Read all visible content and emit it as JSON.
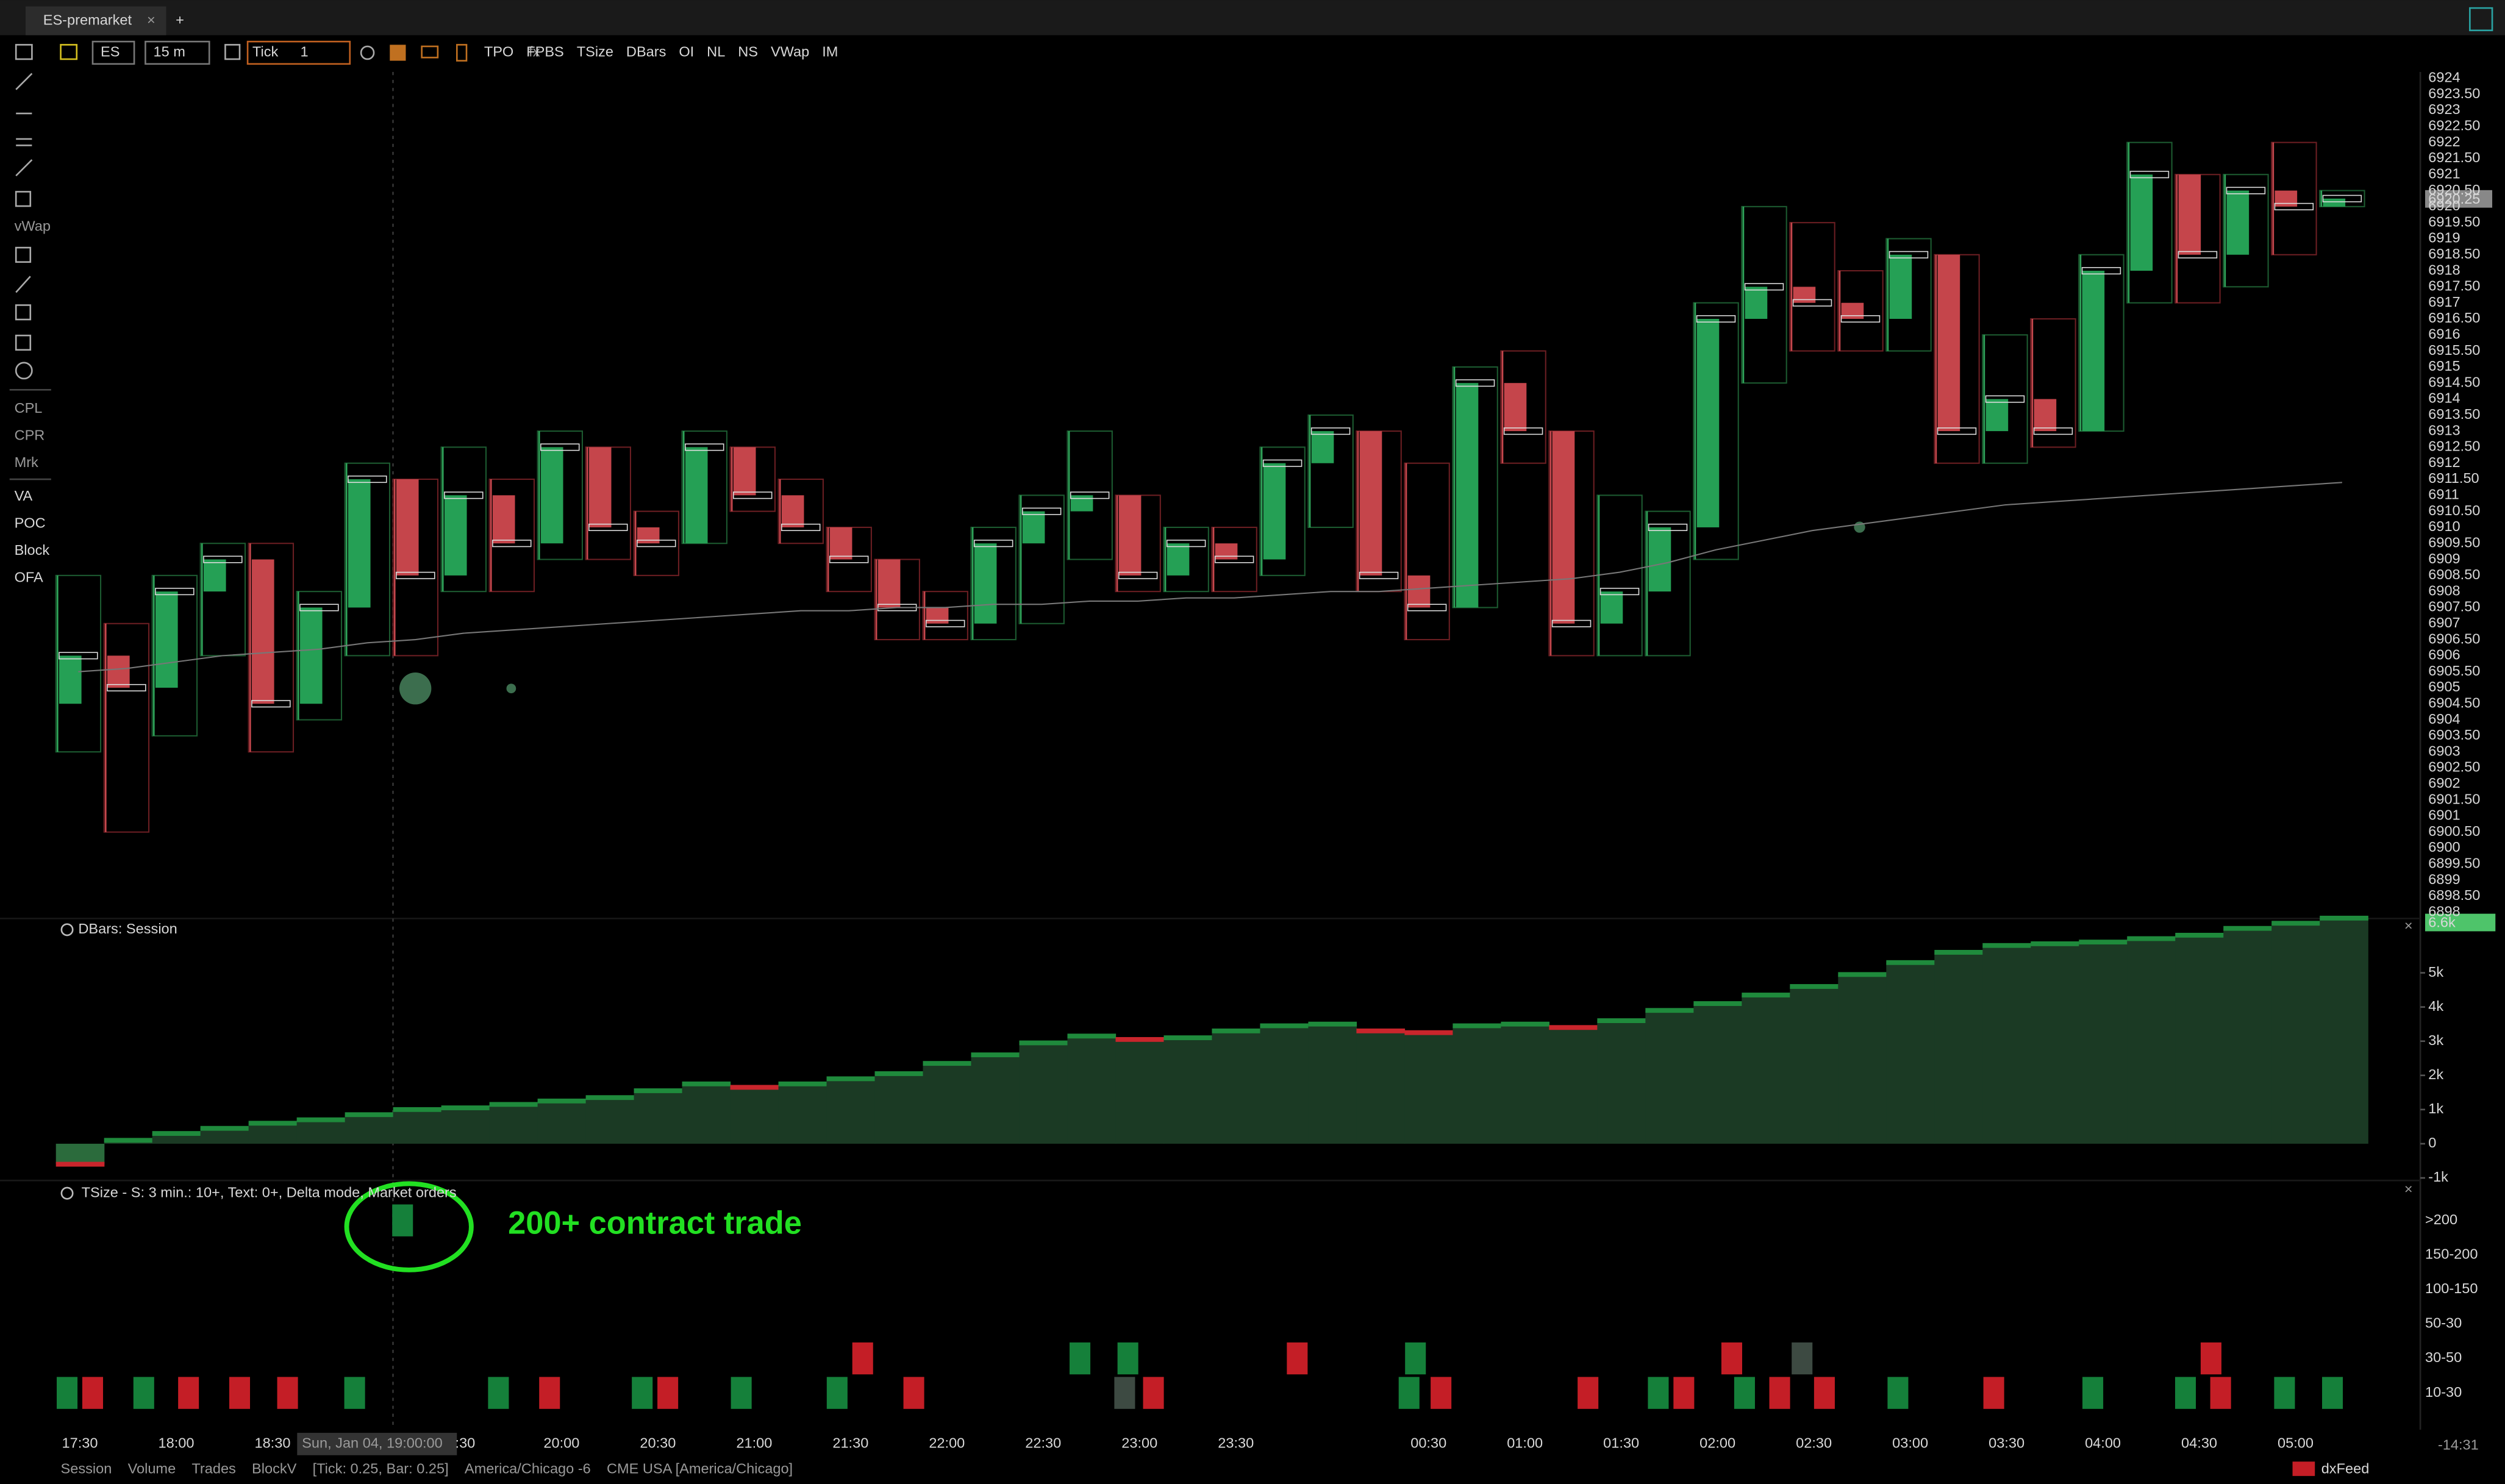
{
  "tab": {
    "title": "ES-premarket"
  },
  "toolbar": {
    "symbol": "ES",
    "interval": "15 m",
    "aggregation": "Tick",
    "aggregation_value": "1",
    "studies": [
      "TPO",
      "FPBS",
      "TSize",
      "DBars",
      "OI",
      "NL",
      "NS",
      "VWap",
      "IM"
    ]
  },
  "sidebar": {
    "top": [
      "vWap"
    ],
    "middle": [
      "CPL",
      "CPR",
      "Mrk"
    ],
    "bottom": [
      "VA",
      "POC",
      "Block",
      "OFA"
    ]
  },
  "price_axis": [
    "6924",
    "6923.50",
    "6923",
    "6922.50",
    "6922",
    "6921.50",
    "6921",
    "6920.50",
    "6920",
    "6919.50",
    "6919",
    "6918.50",
    "6918",
    "6917.50",
    "6917",
    "6916.50",
    "6916",
    "6915.50",
    "6915",
    "6914.50",
    "6914",
    "6913.50",
    "6913",
    "6912.50",
    "6912",
    "6911.50",
    "6911",
    "6910.50",
    "6910",
    "6909.50",
    "6909",
    "6908.50",
    "6908",
    "6907.50",
    "6907",
    "6906.50",
    "6906",
    "6905.50",
    "6905",
    "6904.50",
    "6904",
    "6903.50",
    "6903",
    "6902.50",
    "6902",
    "6901.50",
    "6901",
    "6900.50",
    "6900",
    "6899.50",
    "6899",
    "6898.50",
    "6898"
  ],
  "current_price": "6920.25",
  "candles": [
    {
      "open": 6904.5,
      "high": 6908.5,
      "low": 6903,
      "close": 6906
    },
    {
      "open": 6906,
      "high": 6907,
      "low": 6900.5,
      "close": 6905
    },
    {
      "open": 6905,
      "high": 6908.5,
      "low": 6903.5,
      "close": 6908
    },
    {
      "open": 6908,
      "high": 6909.5,
      "low": 6906,
      "close": 6909
    },
    {
      "open": 6909,
      "high": 6909.5,
      "low": 6903,
      "close": 6904.5
    },
    {
      "open": 6904.5,
      "high": 6908,
      "low": 6904,
      "close": 6907.5
    },
    {
      "open": 6907.5,
      "high": 6912,
      "low": 6906,
      "close": 6911.5
    },
    {
      "open": 6911.5,
      "high": 6911.5,
      "low": 6906,
      "close": 6908.5
    },
    {
      "open": 6908.5,
      "high": 6912.5,
      "low": 6908,
      "close": 6911
    },
    {
      "open": 6911,
      "high": 6911.5,
      "low": 6908,
      "close": 6909.5
    },
    {
      "open": 6909.5,
      "high": 6913,
      "low": 6909,
      "close": 6912.5
    },
    {
      "open": 6912.5,
      "high": 6912.5,
      "low": 6909,
      "close": 6910
    },
    {
      "open": 6910,
      "high": 6910.5,
      "low": 6908.5,
      "close": 6909.5
    },
    {
      "open": 6909.5,
      "high": 6913,
      "low": 6909.5,
      "close": 6912.5
    },
    {
      "open": 6912.5,
      "high": 6912.5,
      "low": 6910.5,
      "close": 6911
    },
    {
      "open": 6911,
      "high": 6911.5,
      "low": 6909.5,
      "close": 6910
    },
    {
      "open": 6910,
      "high": 6910,
      "low": 6908,
      "close": 6909
    },
    {
      "open": 6909,
      "high": 6909,
      "low": 6906.5,
      "close": 6907.5
    },
    {
      "open": 6907.5,
      "high": 6908,
      "low": 6906.5,
      "close": 6907
    },
    {
      "open": 6907,
      "high": 6910,
      "low": 6906.5,
      "close": 6909.5
    },
    {
      "open": 6909.5,
      "high": 6911,
      "low": 6907,
      "close": 6910.5
    },
    {
      "open": 6910.5,
      "high": 6913,
      "low": 6909,
      "close": 6911
    },
    {
      "open": 6911,
      "high": 6911,
      "low": 6908,
      "close": 6908.5
    },
    {
      "open": 6908.5,
      "high": 6910,
      "low": 6908,
      "close": 6909.5
    },
    {
      "open": 6909.5,
      "high": 6910,
      "low": 6908,
      "close": 6909
    },
    {
      "open": 6909,
      "high": 6912.5,
      "low": 6908.5,
      "close": 6912
    },
    {
      "open": 6912,
      "high": 6913.5,
      "low": 6910,
      "close": 6913
    },
    {
      "open": 6913,
      "high": 6913,
      "low": 6908,
      "close": 6908.5
    },
    {
      "open": 6908.5,
      "high": 6912,
      "low": 6906.5,
      "close": 6907.5
    },
    {
      "open": 6907.5,
      "high": 6915,
      "low": 6907.5,
      "close": 6914.5
    },
    {
      "open": 6914.5,
      "high": 6915.5,
      "low": 6912,
      "close": 6913
    },
    {
      "open": 6913,
      "high": 6913,
      "low": 6906,
      "close": 6907
    },
    {
      "open": 6907,
      "high": 6911,
      "low": 6906,
      "close": 6908
    },
    {
      "open": 6908,
      "high": 6910.5,
      "low": 6906,
      "close": 6910
    },
    {
      "open": 6910,
      "high": 6917,
      "low": 6909,
      "close": 6916.5
    },
    {
      "open": 6916.5,
      "high": 6920,
      "low": 6914.5,
      "close": 6917.5
    },
    {
      "open": 6917.5,
      "high": 6919.5,
      "low": 6915.5,
      "close": 6917
    },
    {
      "open": 6917,
      "high": 6918,
      "low": 6915.5,
      "close": 6916.5
    },
    {
      "open": 6916.5,
      "high": 6919,
      "low": 6915.5,
      "close": 6918.5
    },
    {
      "open": 6918.5,
      "high": 6918.5,
      "low": 6912,
      "close": 6913
    },
    {
      "open": 6913,
      "high": 6916,
      "low": 6912,
      "close": 6914
    },
    {
      "open": 6914,
      "high": 6916.5,
      "low": 6912.5,
      "close": 6913
    },
    {
      "open": 6913,
      "high": 6918.5,
      "low": 6913,
      "close": 6918
    },
    {
      "open": 6918,
      "high": 6922,
      "low": 6917,
      "close": 6921
    },
    {
      "open": 6921,
      "high": 6921,
      "low": 6917,
      "close": 6918.5
    },
    {
      "open": 6918.5,
      "high": 6921,
      "low": 6917.5,
      "close": 6920.5
    },
    {
      "open": 6920.5,
      "high": 6922,
      "low": 6918.5,
      "close": 6920
    },
    {
      "open": 6920,
      "high": 6920.5,
      "low": 6920,
      "close": 6920.25
    }
  ],
  "vwap": [
    6905.5,
    6905.6,
    6905.8,
    6906,
    6906.1,
    6906.2,
    6906.4,
    6906.5,
    6906.7,
    6906.8,
    6906.9,
    6907,
    6907.1,
    6907.2,
    6907.3,
    6907.4,
    6907.4,
    6907.5,
    6907.5,
    6907.6,
    6907.6,
    6907.7,
    6907.7,
    6907.8,
    6907.8,
    6907.9,
    6908,
    6908,
    6908.1,
    6908.2,
    6908.3,
    6908.4,
    6908.6,
    6908.9,
    6909.3,
    6909.6,
    6909.9,
    6910.1,
    6910.3,
    6910.5,
    6910.7,
    6910.8,
    6910.9,
    6911,
    6911.1,
    6911.2,
    6911.3,
    6911.4
  ],
  "dbars": {
    "title": "DBars: Session",
    "current": "6.6k",
    "ticks": [
      {
        "value": 5000,
        "label": "5k"
      },
      {
        "value": 4000,
        "label": "4k"
      },
      {
        "value": 3000,
        "label": "3k"
      },
      {
        "value": 2000,
        "label": "2k"
      },
      {
        "value": 1000,
        "label": "1k"
      },
      0,
      {
        "value": -1000,
        "label": "-1k"
      }
    ],
    "values": [
      -600,
      100,
      300,
      450,
      600,
      700,
      850,
      1000,
      1050,
      1150,
      1250,
      1350,
      1550,
      1750,
      1650,
      1750,
      1900,
      2050,
      2350,
      2600,
      2950,
      3150,
      3050,
      3100,
      3300,
      3450,
      3500,
      3300,
      3250,
      3450,
      3500,
      3400,
      3600,
      3900,
      4100,
      4350,
      4600,
      4950,
      5300,
      5600,
      5800,
      5850,
      5900,
      6000,
      6100,
      6300,
      6450,
      6600
    ],
    "up_color": "#1f8a3c",
    "down_color": "#c9252c",
    "area_color": "#1b3a24"
  },
  "tsize": {
    "title": "TSize - S: 3 min.: 10+, Text: 0+, Delta mode,  Market orders",
    "buckets": [
      ">200",
      "150-200",
      "100-150",
      "50-30",
      "30-50",
      "10-30"
    ],
    "colors": {
      "buy": "#15803a",
      "sell": "#c41e26",
      "neutral": "#3d4a42"
    },
    "trades": [
      {
        "time": "17:26",
        "bucket": 5,
        "side": "buy"
      },
      {
        "time": "17:34",
        "bucket": 5,
        "side": "sell"
      },
      {
        "time": "17:50",
        "bucket": 5,
        "side": "buy"
      },
      {
        "time": "18:04",
        "bucket": 5,
        "side": "sell"
      },
      {
        "time": "18:20",
        "bucket": 5,
        "side": "sell"
      },
      {
        "time": "18:35",
        "bucket": 5,
        "side": "sell"
      },
      {
        "time": "18:56",
        "bucket": 5,
        "side": "buy"
      },
      {
        "time": "19:11",
        "bucket": 0,
        "side": "buy"
      },
      {
        "time": "19:41",
        "bucket": 5,
        "side": "buy"
      },
      {
        "time": "19:57",
        "bucket": 5,
        "side": "sell"
      },
      {
        "time": "20:26",
        "bucket": 5,
        "side": "buy"
      },
      {
        "time": "20:34",
        "bucket": 5,
        "side": "sell"
      },
      {
        "time": "20:57",
        "bucket": 5,
        "side": "buy"
      },
      {
        "time": "21:27",
        "bucket": 5,
        "side": "buy"
      },
      {
        "time": "21:35",
        "bucket": 4,
        "side": "sell"
      },
      {
        "time": "21:51",
        "bucket": 5,
        "side": "sell"
      },
      {
        "time": "22:43",
        "bucket": 4,
        "side": "buy"
      },
      {
        "time": "22:57",
        "bucket": 5,
        "side": "neutral"
      },
      {
        "time": "22:58",
        "bucket": 4,
        "side": "buy"
      },
      {
        "time": "23:06",
        "bucket": 5,
        "side": "sell"
      },
      {
        "time": "23:51",
        "bucket": 4,
        "side": "sell"
      },
      {
        "time": "00:26",
        "bucket": 5,
        "side": "buy"
      },
      {
        "time": "00:28",
        "bucket": 4,
        "side": "buy"
      },
      {
        "time": "00:36",
        "bucket": 5,
        "side": "sell"
      },
      {
        "time": "01:22",
        "bucket": 5,
        "side": "sell"
      },
      {
        "time": "01:44",
        "bucket": 5,
        "side": "buy"
      },
      {
        "time": "01:52",
        "bucket": 5,
        "side": "sell"
      },
      {
        "time": "02:07",
        "bucket": 4,
        "side": "sell"
      },
      {
        "time": "02:11",
        "bucket": 5,
        "side": "buy"
      },
      {
        "time": "02:22",
        "bucket": 5,
        "side": "sell"
      },
      {
        "time": "02:29",
        "bucket": 4,
        "side": "neutral"
      },
      {
        "time": "02:36",
        "bucket": 5,
        "side": "sell"
      },
      {
        "time": "02:59",
        "bucket": 5,
        "side": "buy"
      },
      {
        "time": "03:29",
        "bucket": 5,
        "side": "sell"
      },
      {
        "time": "04:00",
        "bucket": 5,
        "side": "buy"
      },
      {
        "time": "04:29",
        "bucket": 5,
        "side": "buy"
      },
      {
        "time": "04:37",
        "bucket": 4,
        "side": "sell"
      },
      {
        "time": "04:40",
        "bucket": 5,
        "side": "sell"
      },
      {
        "time": "05:00",
        "bucket": 5,
        "side": "buy"
      },
      {
        "time": "05:15",
        "bucket": 5,
        "side": "buy"
      }
    ]
  },
  "annotation": "200+ contract trade",
  "time_axis": [
    "17:30",
    "18:00",
    "18:30",
    null,
    ":30",
    "20:00",
    "20:30",
    "21:00",
    "21:30",
    "22:00",
    "22:30",
    "23:00",
    "23:30",
    null,
    "00:30",
    "01:00",
    "01:30",
    "02:00",
    "02:30",
    "03:00",
    "03:30",
    "04:00",
    "04:30",
    "05:00"
  ],
  "crosshair_time": "Sun, Jan 04, 19:00:00",
  "status_bar": {
    "items": [
      "Session",
      "Volume",
      "Trades",
      "BlockV",
      "[Tick: 0.25, Bar: 0.25]",
      "America/Chicago -6",
      "CME USA [America/Chicago]"
    ],
    "feed": "dxFeed",
    "countdown": "-14:31"
  }
}
